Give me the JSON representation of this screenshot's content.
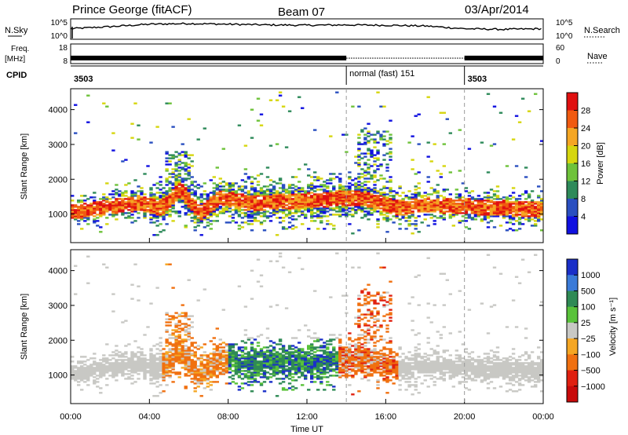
{
  "header": {
    "station": "Prince George (fitACF)",
    "beam": "Beam 07",
    "date": "03/Apr/2014"
  },
  "side_labels": {
    "nsky": "N.Sky",
    "nsearch": "N.Search",
    "freq_line1": "Freq.",
    "freq_line2": "[MHz]",
    "nave": "Nave",
    "cpid": "CPID"
  },
  "chart_data": [
    {
      "type": "line",
      "panel": "noise",
      "left_ticks": [
        "10^5",
        "10^0"
      ],
      "right_ticks": [
        "10^5",
        "10^0"
      ],
      "ylim": [
        0,
        5
      ],
      "x": [
        0,
        2,
        4,
        6,
        8,
        10,
        12,
        14,
        16,
        18,
        20,
        22,
        24
      ],
      "series": [
        {
          "values": [
            2.6,
            3.2,
            3.9,
            4.1,
            3.9,
            3.7,
            3.6,
            3.7,
            3.6,
            3.4,
            2.6,
            2.4,
            2.6
          ]
        }
      ]
    },
    {
      "type": "line",
      "panel": "frequency",
      "left_ticks": [
        "18",
        "8"
      ],
      "right_ticks": [
        "60",
        "0"
      ],
      "ylim": [
        8,
        18
      ],
      "x": [
        0,
        14,
        20,
        24
      ],
      "series": [
        {
          "values": [
            10.7,
            10.7,
            10.7,
            10.7
          ]
        },
        {
          "values": [
            11,
            11,
            11,
            11
          ]
        }
      ]
    },
    {
      "type": "table",
      "panel": "cpid",
      "segments": [
        {
          "start": 0,
          "end": 14,
          "label": "3503"
        },
        {
          "start": 14,
          "end": 20,
          "label": "normal (fast) 151"
        },
        {
          "start": 20,
          "end": 24,
          "label": "3503"
        }
      ]
    },
    {
      "type": "heatmap",
      "panel": "power",
      "ylabel": "Slant Range [km]",
      "xlim": [
        0,
        24
      ],
      "ylim": [
        180,
        4600
      ],
      "yticks": [
        1000,
        2000,
        3000,
        4000
      ],
      "colorbar": {
        "label": "Power [dB]",
        "ticks": [
          "28",
          "24",
          "20",
          "16",
          "12",
          "8",
          "4"
        ],
        "colors": [
          "#e01010",
          "#f05a10",
          "#f5a623",
          "#d6d60e",
          "#6ec23a",
          "#2e8a5a",
          "#2a4fc0",
          "#1010e0"
        ]
      }
    },
    {
      "type": "heatmap",
      "panel": "velocity",
      "ylabel": "Slant Range [km]",
      "xlabel": "Time UT",
      "xlim": [
        0,
        24
      ],
      "ylim": [
        180,
        4600
      ],
      "yticks": [
        1000,
        2000,
        3000,
        4000
      ],
      "xticks": [
        "00:00",
        "04:00",
        "08:00",
        "12:00",
        "16:00",
        "20:00",
        "00:00"
      ],
      "colorbar": {
        "label": "Velocity [m s⁻¹]",
        "ticks": [
          "1000",
          "500",
          "100",
          "25",
          "−25",
          "−100",
          "−500",
          "−1000"
        ],
        "colors": [
          "#1a2fc8",
          "#3a7ad8",
          "#2f8a55",
          "#59c23a",
          "#c8c8c4",
          "#f5a623",
          "#f07010",
          "#e02010",
          "#c80a0a"
        ]
      }
    }
  ]
}
